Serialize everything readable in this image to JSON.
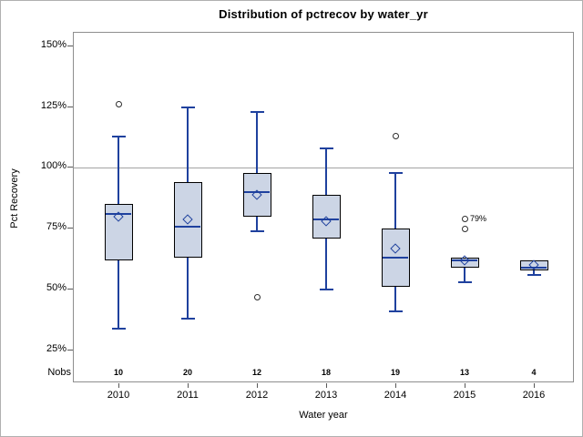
{
  "chart_data": {
    "type": "boxplot",
    "title": "Distribution of pctrecov by water_yr",
    "xlabel": "Water year",
    "ylabel": "Pct Recovery",
    "nobs_header": "Nobs",
    "ylim": [
      11.5,
      155.5
    ],
    "grid": false,
    "reference_line": 100,
    "yticks": [
      {
        "value": 150,
        "label": "150%"
      },
      {
        "value": 125,
        "label": "125%"
      },
      {
        "value": 100,
        "label": "100%"
      },
      {
        "value": 75,
        "label": "75%"
      },
      {
        "value": 50,
        "label": "50%"
      },
      {
        "value": 25,
        "label": "25%"
      }
    ],
    "series": [
      {
        "year": "2010",
        "nobs": "10",
        "low": 34,
        "q1": 62,
        "median": 81,
        "q3": 85,
        "high": 113,
        "mean": 80,
        "outliers": [
          {
            "value": 126
          }
        ]
      },
      {
        "year": "2011",
        "nobs": "20",
        "low": 38,
        "q1": 63,
        "median": 76,
        "q3": 94,
        "high": 125,
        "mean": 79,
        "outliers": []
      },
      {
        "year": "2012",
        "nobs": "12",
        "low": 74,
        "q1": 80,
        "median": 90,
        "q3": 98,
        "high": 123,
        "mean": 89,
        "outliers": [
          {
            "value": 47
          }
        ]
      },
      {
        "year": "2013",
        "nobs": "18",
        "low": 50,
        "q1": 71,
        "median": 79,
        "q3": 89,
        "high": 108,
        "mean": 78,
        "outliers": []
      },
      {
        "year": "2014",
        "nobs": "19",
        "low": 41,
        "q1": 51,
        "median": 63,
        "q3": 75,
        "high": 98,
        "mean": 67,
        "outliers": [
          {
            "value": 113
          }
        ]
      },
      {
        "year": "2015",
        "nobs": "13",
        "low": 53,
        "q1": 59,
        "median": 62,
        "q3": 63,
        "high": 63,
        "mean": 62,
        "outliers": [
          {
            "value": 79,
            "label": "79%"
          },
          {
            "value": 75
          }
        ]
      },
      {
        "year": "2016",
        "nobs": "4",
        "low": 56,
        "q1": 58,
        "median": 59,
        "q3": 62,
        "high": 62,
        "mean": 60,
        "outliers": []
      }
    ],
    "colors": {
      "box_fill": "#ccd5e5",
      "box_border": "#000000",
      "whisker": "#1f419e",
      "outlier": "#2e2e2e",
      "reference_line": "#a3a3a3"
    }
  }
}
